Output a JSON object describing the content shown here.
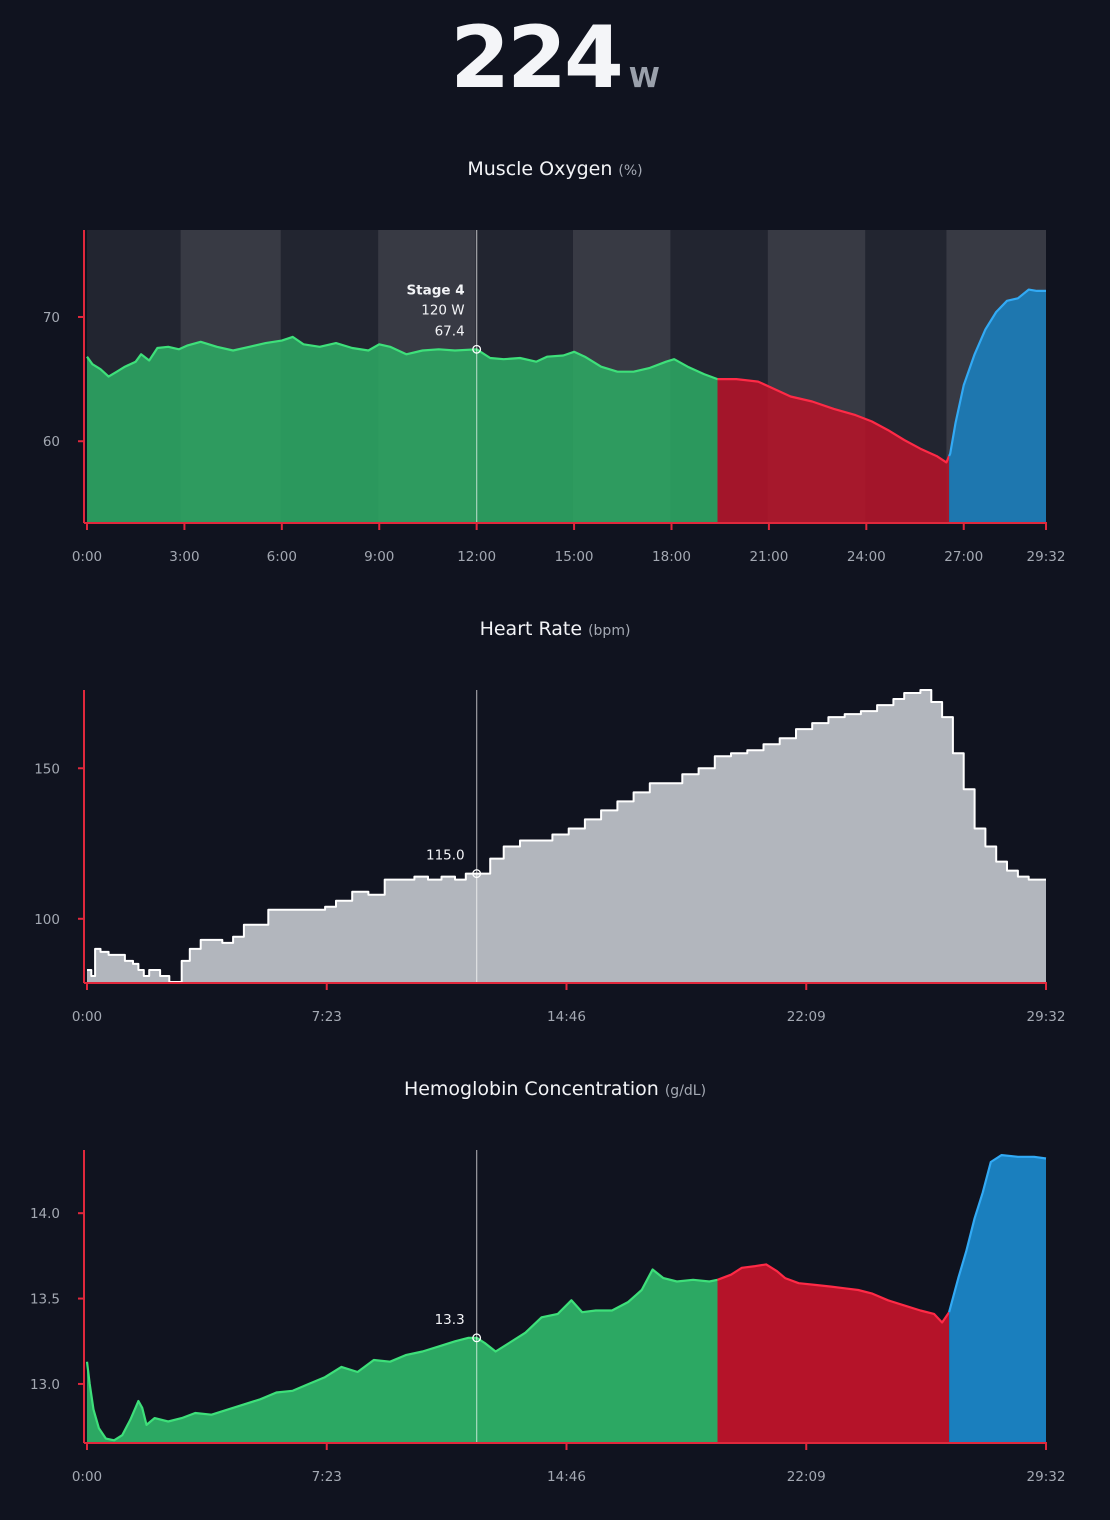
{
  "header": {
    "power_value": "224",
    "power_unit": "W"
  },
  "colors": {
    "background": "#10131f",
    "axis": "#e0283c",
    "green_fill": "#2ca863",
    "green_line": "#3ee07a",
    "red_fill": "#b51329",
    "red_line": "#ff2a46",
    "blue_fill": "#1a7fbe",
    "blue_line": "#32aaf5",
    "hr_fill": "#b2b6bd",
    "hr_line": "#ffffff",
    "stage_light": "#ffffff",
    "marker": "#9a9ea6"
  },
  "chart_data": [
    {
      "id": "muscle_oxygen",
      "type": "area",
      "title": "Muscle Oxygen",
      "unit": "(%)",
      "x_max_seconds": 1772,
      "ylim": [
        53.5,
        77
      ],
      "yticks": [
        {
          "value": 60,
          "label": "60"
        },
        {
          "value": 70,
          "label": "70"
        }
      ],
      "xticks": [
        {
          "value": 0,
          "label": "0:00"
        },
        {
          "value": 180,
          "label": "3:00"
        },
        {
          "value": 360,
          "label": "6:00"
        },
        {
          "value": 540,
          "label": "9:00"
        },
        {
          "value": 720,
          "label": "12:00"
        },
        {
          "value": 900,
          "label": "15:00"
        },
        {
          "value": 1080,
          "label": "18:00"
        },
        {
          "value": 1260,
          "label": "21:00"
        },
        {
          "value": 1440,
          "label": "24:00"
        },
        {
          "value": 1620,
          "label": "27:00"
        },
        {
          "value": 1772,
          "label": "29:32"
        }
      ],
      "stage_bands": [
        {
          "start": 0,
          "end": 173,
          "shade": 0.08
        },
        {
          "start": 173,
          "end": 358,
          "shade": 0.17
        },
        {
          "start": 358,
          "end": 538,
          "shade": 0.08
        },
        {
          "start": 538,
          "end": 718,
          "shade": 0.17
        },
        {
          "start": 718,
          "end": 898,
          "shade": 0.08
        },
        {
          "start": 898,
          "end": 1078,
          "shade": 0.17
        },
        {
          "start": 1078,
          "end": 1258,
          "shade": 0.08
        },
        {
          "start": 1258,
          "end": 1438,
          "shade": 0.17
        },
        {
          "start": 1438,
          "end": 1588,
          "shade": 0.08
        },
        {
          "start": 1588,
          "end": 1772,
          "shade": 0.17
        }
      ],
      "segments": [
        {
          "color": "green",
          "end": 1165
        },
        {
          "color": "red",
          "end": 1593
        },
        {
          "color": "blue",
          "end": 1772
        }
      ],
      "points": [
        [
          0,
          66.8
        ],
        [
          10,
          66.2
        ],
        [
          25,
          65.8
        ],
        [
          40,
          65.2
        ],
        [
          55,
          65.6
        ],
        [
          70,
          66.0
        ],
        [
          90,
          66.4
        ],
        [
          100,
          67.0
        ],
        [
          115,
          66.5
        ],
        [
          130,
          67.5
        ],
        [
          150,
          67.6
        ],
        [
          170,
          67.4
        ],
        [
          185,
          67.7
        ],
        [
          210,
          68.0
        ],
        [
          240,
          67.6
        ],
        [
          270,
          67.3
        ],
        [
          300,
          67.6
        ],
        [
          330,
          67.9
        ],
        [
          360,
          68.1
        ],
        [
          380,
          68.4
        ],
        [
          400,
          67.8
        ],
        [
          430,
          67.6
        ],
        [
          460,
          67.9
        ],
        [
          490,
          67.5
        ],
        [
          520,
          67.3
        ],
        [
          540,
          67.8
        ],
        [
          560,
          67.6
        ],
        [
          590,
          67.0
        ],
        [
          620,
          67.3
        ],
        [
          650,
          67.4
        ],
        [
          680,
          67.3
        ],
        [
          720,
          67.4
        ],
        [
          745,
          66.7
        ],
        [
          770,
          66.6
        ],
        [
          800,
          66.7
        ],
        [
          830,
          66.4
        ],
        [
          850,
          66.8
        ],
        [
          880,
          66.9
        ],
        [
          900,
          67.2
        ],
        [
          920,
          66.8
        ],
        [
          950,
          66.0
        ],
        [
          980,
          65.6
        ],
        [
          1010,
          65.6
        ],
        [
          1040,
          65.9
        ],
        [
          1070,
          66.4
        ],
        [
          1085,
          66.6
        ],
        [
          1110,
          66.0
        ],
        [
          1140,
          65.4
        ],
        [
          1165,
          65.0
        ],
        [
          1200,
          65.0
        ],
        [
          1240,
          64.8
        ],
        [
          1270,
          64.2
        ],
        [
          1300,
          63.6
        ],
        [
          1340,
          63.2
        ],
        [
          1380,
          62.6
        ],
        [
          1420,
          62.1
        ],
        [
          1450,
          61.6
        ],
        [
          1480,
          60.9
        ],
        [
          1510,
          60.1
        ],
        [
          1540,
          59.4
        ],
        [
          1570,
          58.8
        ],
        [
          1588,
          58.3
        ],
        [
          1595,
          59.0
        ],
        [
          1605,
          61.5
        ],
        [
          1620,
          64.5
        ],
        [
          1640,
          67.0
        ],
        [
          1660,
          69.0
        ],
        [
          1680,
          70.4
        ],
        [
          1700,
          71.3
        ],
        [
          1720,
          71.5
        ],
        [
          1740,
          72.2
        ],
        [
          1755,
          72.1
        ],
        [
          1772,
          72.1
        ]
      ],
      "cursor": {
        "x": 720,
        "value": 67.4,
        "label": "67.4",
        "stage_label": "Stage 4",
        "power_label": "120 W"
      }
    },
    {
      "id": "heart_rate",
      "type": "area",
      "title": "Heart Rate",
      "unit": "(bpm)",
      "x_max_seconds": 1772,
      "ylim": [
        79,
        176
      ],
      "yticks": [
        {
          "value": 100,
          "label": "100"
        },
        {
          "value": 150,
          "label": "150"
        }
      ],
      "xticks": [
        {
          "value": 0,
          "label": "0:00"
        },
        {
          "value": 443,
          "label": "7:23"
        },
        {
          "value": 886,
          "label": "14:46"
        },
        {
          "value": 1329,
          "label": "22:09"
        },
        {
          "value": 1772,
          "label": "29:32"
        }
      ],
      "segments": [
        {
          "color": "gray",
          "end": 1772
        }
      ],
      "points": [
        [
          0,
          83
        ],
        [
          8,
          81
        ],
        [
          15,
          90
        ],
        [
          25,
          89
        ],
        [
          40,
          88
        ],
        [
          55,
          88
        ],
        [
          70,
          86
        ],
        [
          85,
          85
        ],
        [
          95,
          83
        ],
        [
          105,
          81
        ],
        [
          115,
          83
        ],
        [
          125,
          83
        ],
        [
          135,
          81
        ],
        [
          145,
          81
        ],
        [
          152,
          79
        ],
        [
          165,
          79
        ],
        [
          175,
          86
        ],
        [
          190,
          90
        ],
        [
          210,
          93
        ],
        [
          230,
          93
        ],
        [
          250,
          92
        ],
        [
          270,
          94
        ],
        [
          290,
          98
        ],
        [
          310,
          98
        ],
        [
          335,
          103
        ],
        [
          360,
          103
        ],
        [
          390,
          103
        ],
        [
          420,
          103
        ],
        [
          440,
          104
        ],
        [
          460,
          106
        ],
        [
          490,
          109
        ],
        [
          520,
          108
        ],
        [
          550,
          113
        ],
        [
          580,
          113
        ],
        [
          605,
          114
        ],
        [
          630,
          113
        ],
        [
          655,
          114
        ],
        [
          680,
          113
        ],
        [
          700,
          115
        ],
        [
          720,
          115
        ],
        [
          745,
          120
        ],
        [
          770,
          124
        ],
        [
          800,
          126
        ],
        [
          830,
          126
        ],
        [
          860,
          128
        ],
        [
          890,
          130
        ],
        [
          920,
          133
        ],
        [
          950,
          136
        ],
        [
          980,
          139
        ],
        [
          1010,
          142
        ],
        [
          1040,
          145
        ],
        [
          1070,
          145
        ],
        [
          1100,
          148
        ],
        [
          1130,
          150
        ],
        [
          1160,
          154
        ],
        [
          1190,
          155
        ],
        [
          1220,
          156
        ],
        [
          1250,
          158
        ],
        [
          1280,
          160
        ],
        [
          1310,
          163
        ],
        [
          1340,
          165
        ],
        [
          1370,
          167
        ],
        [
          1400,
          168
        ],
        [
          1430,
          169
        ],
        [
          1460,
          171
        ],
        [
          1490,
          173
        ],
        [
          1510,
          175
        ],
        [
          1540,
          176
        ],
        [
          1560,
          172
        ],
        [
          1580,
          167
        ],
        [
          1600,
          155
        ],
        [
          1620,
          143
        ],
        [
          1640,
          130
        ],
        [
          1660,
          124
        ],
        [
          1680,
          119
        ],
        [
          1700,
          116
        ],
        [
          1720,
          114
        ],
        [
          1740,
          113
        ],
        [
          1772,
          113
        ]
      ],
      "cursor": {
        "x": 720,
        "value": 115.0,
        "label": "115.0"
      }
    },
    {
      "id": "hemoglobin",
      "type": "area",
      "title": "Hemoglobin Concentration",
      "unit": "(g/dL)",
      "x_max_seconds": 1772,
      "ylim": [
        12.66,
        14.37
      ],
      "yticks": [
        {
          "value": 13.0,
          "label": "13.0"
        },
        {
          "value": 13.5,
          "label": "13.5"
        },
        {
          "value": 14.0,
          "label": "14.0"
        }
      ],
      "xticks": [
        {
          "value": 0,
          "label": "0:00"
        },
        {
          "value": 443,
          "label": "7:23"
        },
        {
          "value": 886,
          "label": "14:46"
        },
        {
          "value": 1329,
          "label": "22:09"
        },
        {
          "value": 1772,
          "label": "29:32"
        }
      ],
      "segments": [
        {
          "color": "green",
          "end": 1165
        },
        {
          "color": "red",
          "end": 1593
        },
        {
          "color": "blue",
          "end": 1772
        }
      ],
      "points": [
        [
          0,
          13.13
        ],
        [
          5,
          13.0
        ],
        [
          12,
          12.85
        ],
        [
          22,
          12.74
        ],
        [
          35,
          12.68
        ],
        [
          50,
          12.67
        ],
        [
          65,
          12.7
        ],
        [
          80,
          12.79
        ],
        [
          95,
          12.9
        ],
        [
          102,
          12.86
        ],
        [
          110,
          12.76
        ],
        [
          125,
          12.8
        ],
        [
          150,
          12.78
        ],
        [
          175,
          12.8
        ],
        [
          200,
          12.83
        ],
        [
          230,
          12.82
        ],
        [
          260,
          12.85
        ],
        [
          290,
          12.88
        ],
        [
          320,
          12.91
        ],
        [
          350,
          12.95
        ],
        [
          380,
          12.96
        ],
        [
          410,
          13.0
        ],
        [
          440,
          13.04
        ],
        [
          470,
          13.1
        ],
        [
          500,
          13.07
        ],
        [
          530,
          13.14
        ],
        [
          560,
          13.13
        ],
        [
          590,
          13.17
        ],
        [
          620,
          13.19
        ],
        [
          650,
          13.22
        ],
        [
          680,
          13.25
        ],
        [
          705,
          13.27
        ],
        [
          720,
          13.27
        ],
        [
          735,
          13.24
        ],
        [
          755,
          13.19
        ],
        [
          780,
          13.24
        ],
        [
          810,
          13.3
        ],
        [
          840,
          13.39
        ],
        [
          870,
          13.41
        ],
        [
          895,
          13.49
        ],
        [
          915,
          13.42
        ],
        [
          940,
          13.43
        ],
        [
          970,
          13.43
        ],
        [
          1000,
          13.48
        ],
        [
          1025,
          13.55
        ],
        [
          1045,
          13.67
        ],
        [
          1065,
          13.62
        ],
        [
          1090,
          13.6
        ],
        [
          1120,
          13.61
        ],
        [
          1150,
          13.6
        ],
        [
          1165,
          13.61
        ],
        [
          1190,
          13.64
        ],
        [
          1210,
          13.68
        ],
        [
          1235,
          13.69
        ],
        [
          1255,
          13.7
        ],
        [
          1275,
          13.66
        ],
        [
          1290,
          13.62
        ],
        [
          1315,
          13.59
        ],
        [
          1345,
          13.58
        ],
        [
          1375,
          13.57
        ],
        [
          1400,
          13.56
        ],
        [
          1425,
          13.55
        ],
        [
          1450,
          13.53
        ],
        [
          1480,
          13.49
        ],
        [
          1510,
          13.46
        ],
        [
          1540,
          13.43
        ],
        [
          1565,
          13.41
        ],
        [
          1580,
          13.36
        ],
        [
          1593,
          13.42
        ],
        [
          1610,
          13.62
        ],
        [
          1625,
          13.78
        ],
        [
          1640,
          13.97
        ],
        [
          1655,
          14.12
        ],
        [
          1670,
          14.3
        ],
        [
          1690,
          14.34
        ],
        [
          1720,
          14.33
        ],
        [
          1750,
          14.33
        ],
        [
          1772,
          14.32
        ]
      ],
      "cursor": {
        "x": 720,
        "value": 13.27,
        "label": "13.3"
      }
    }
  ]
}
